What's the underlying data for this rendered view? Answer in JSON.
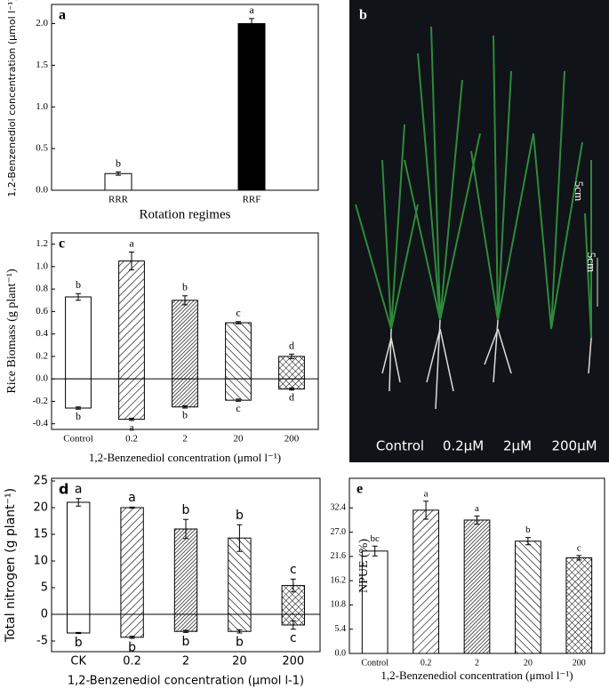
{
  "chart_data": [
    {
      "type": "bar",
      "panel": "a",
      "categories": [
        "RRR",
        "RRF"
      ],
      "series": [
        {
          "values": [
            0.2,
            2.0
          ],
          "errors": [
            0.02,
            0.06
          ],
          "labels": [
            "b",
            "a"
          ],
          "colors": [
            "#ffffff",
            "#000000"
          ]
        }
      ],
      "xlabel": "Rotation regimes",
      "ylabel": "1,2-Benzenediol concentration (μmol l⁻¹)",
      "ylim": [
        0,
        2.23
      ],
      "yticks": [
        {
          "value": 0,
          "label": "0.0"
        },
        0.5,
        {
          "value": 1,
          "label": "1.0"
        },
        1.5,
        {
          "value": 2,
          "label": "2.0"
        }
      ],
      "zero_line": false
    },
    {
      "type": "bar",
      "panel": "c",
      "categories": [
        "Control",
        "0.2",
        "2",
        "20",
        "200"
      ],
      "series": [
        {
          "values": [
            0.73,
            1.05,
            0.7,
            0.5,
            0.2
          ],
          "errors": [
            0.03,
            0.08,
            0.04,
            0.01,
            0.02
          ],
          "labels": [
            "b",
            "a",
            "b",
            "c",
            "d"
          ],
          "patterns": [
            "none",
            "diag-right",
            "dense",
            "diag-left",
            "cross"
          ]
        },
        {
          "values": [
            -0.26,
            -0.36,
            -0.25,
            -0.19,
            -0.09
          ],
          "errors": [
            0.01,
            0.01,
            0.01,
            0.01,
            0.01
          ],
          "labels": [
            "b",
            "a",
            "b",
            "c",
            "d"
          ],
          "patterns": [
            "none",
            "diag-right",
            "dense",
            "diag-left",
            "cross"
          ]
        }
      ],
      "xlabel": "1,2-Benzenediol concentration (μmol l⁻¹)",
      "ylabel": "Rice Biomass (g plant⁻¹)",
      "ylim": [
        -0.45,
        1.3
      ],
      "yticks": [
        -0.4,
        -0.2,
        {
          "value": 0,
          "label": "0.0"
        },
        0.2,
        0.4,
        0.6,
        0.8,
        {
          "value": 1,
          "label": "1.0"
        },
        1.2
      ],
      "zero_line": true
    },
    {
      "type": "bar",
      "panel": "d",
      "categories": [
        "CK",
        "0.2",
        "2",
        "20",
        "200"
      ],
      "series": [
        {
          "values": [
            21,
            20,
            16,
            14.3,
            5.4
          ],
          "errors": [
            0.7,
            0.1,
            1.8,
            2.5,
            1.2
          ],
          "labels": [
            "a",
            "a",
            "b",
            "b",
            "c"
          ],
          "patterns": [
            "none",
            "diag-right",
            "dense",
            "diag-left",
            "cross"
          ]
        },
        {
          "values": [
            -3.5,
            -4.3,
            -3.2,
            -3.2,
            -2.0
          ],
          "errors": [
            0.1,
            0.2,
            0.2,
            0.3,
            0.8
          ],
          "labels": [
            "b",
            "b",
            "b",
            "b",
            "c"
          ],
          "patterns": [
            "none",
            "diag-right",
            "dense",
            "diag-left",
            "cross"
          ]
        }
      ],
      "xlabel": "1,2-Benzenediol concentration (μmol l-1)",
      "ylabel": "Total nitrogen (g plant⁻¹)",
      "ylim": [
        -7,
        25.5
      ],
      "yticks": [
        -5,
        0,
        5,
        10,
        15,
        20,
        25
      ],
      "zero_line": true
    },
    {
      "type": "bar",
      "panel": "e",
      "categories": [
        "Control",
        "0.2",
        "2",
        "20",
        "200"
      ],
      "series": [
        {
          "values": [
            22.8,
            31.9,
            29.7,
            25.0,
            21.3
          ],
          "errors": [
            1.1,
            2.0,
            0.9,
            0.8,
            0.5
          ],
          "labels": [
            "bc",
            "a",
            "a",
            "b",
            "c"
          ],
          "patterns": [
            "none",
            "diag-right",
            "dense",
            "diag-left",
            "cross"
          ]
        }
      ],
      "xlabel": "1,2-Benzenediol concentration (μmol l⁻¹)",
      "ylabel": "NPUE (%)",
      "ylim": [
        0,
        39
      ],
      "yticks": [
        {
          "value": 0,
          "label": "0.0"
        },
        5.4,
        10.8,
        16.2,
        21.6,
        {
          "value": 27,
          "label": "27.0"
        },
        32.4
      ],
      "zero_line": false
    }
  ],
  "photo": {
    "panel": "b",
    "labels": [
      "Control",
      "0.2μM",
      "2μM",
      "200μM"
    ],
    "scale_labels": [
      "5cm",
      "5cm"
    ]
  }
}
